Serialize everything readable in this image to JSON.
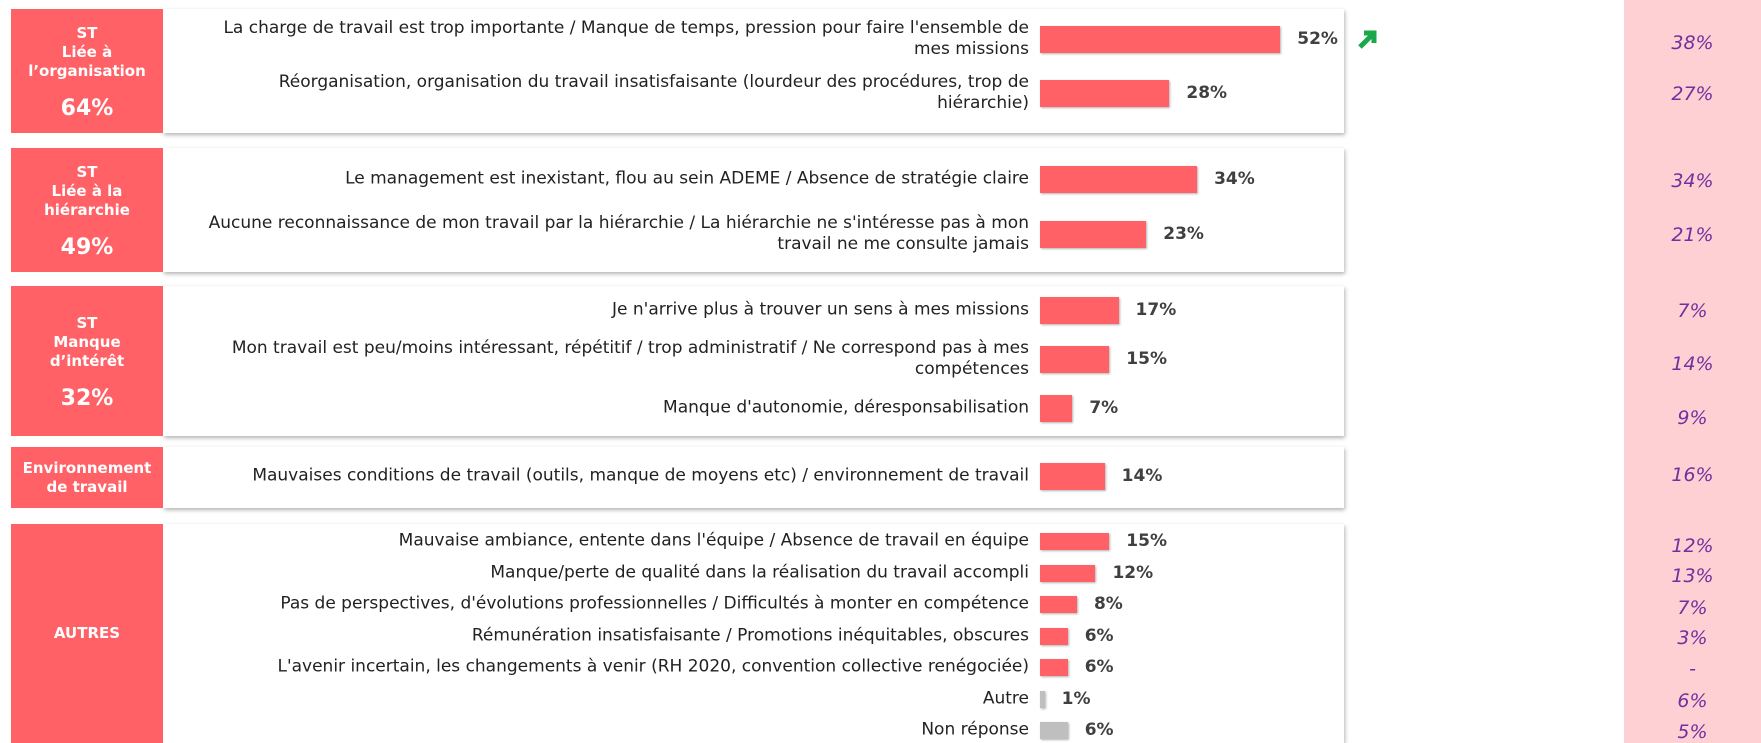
{
  "chart_data": {
    "type": "bar",
    "orientation": "horizontal",
    "groups": [
      {
        "title_lines": [
          "ST",
          "Liée à",
          "l’organisation"
        ],
        "total": 64,
        "total_label": "64%",
        "categories": [
          "La charge de travail est trop importante / Manque de temps, pression pour faire l'ensemble de mes missions",
          "Réorganisation, organisation du travail insatisfaisante (lourdeur des procédures, trop de hiérarchie)"
        ],
        "values": [
          52,
          28
        ],
        "value_labels": [
          "52%",
          "28%"
        ],
        "colors": [
          "#ff6166",
          "#ff6166"
        ],
        "previous": [
          38,
          27
        ],
        "previous_labels": [
          "38%",
          "27%"
        ]
      },
      {
        "title_lines": [
          "ST",
          "Liée à la",
          "hiérarchie"
        ],
        "total": 49,
        "total_label": "49%",
        "categories": [
          "Le management est inexistant, flou au sein ADEME / Absence de stratégie claire",
          "Aucune reconnaissance de mon travail par la hiérarchie / La hiérarchie ne s'intéresse pas à mon travail ne me consulte jamais"
        ],
        "values": [
          34,
          23
        ],
        "value_labels": [
          "34%",
          "23%"
        ],
        "colors": [
          "#ff6166",
          "#ff6166"
        ],
        "previous": [
          34,
          21
        ],
        "previous_labels": [
          "34%",
          "21%"
        ]
      },
      {
        "title_lines": [
          "ST",
          "Manque",
          "d’intérêt"
        ],
        "total": 32,
        "total_label": "32%",
        "categories": [
          "Je n'arrive plus à trouver un sens à mes missions",
          "Mon travail est peu/moins intéressant, répétitif / trop administratif / Ne correspond pas à mes compétences",
          "Manque d'autonomie, déresponsabilisation"
        ],
        "values": [
          17,
          15,
          7
        ],
        "value_labels": [
          "17%",
          "15%",
          "7%"
        ],
        "colors": [
          "#ff6166",
          "#ff6166",
          "#ff6166"
        ],
        "previous": [
          7,
          14,
          9
        ],
        "previous_labels": [
          "7%",
          "14%",
          "9%"
        ]
      },
      {
        "title_lines": [
          "Environnement",
          "de travail"
        ],
        "categories": [
          "Mauvaises conditions de travail (outils, manque de moyens etc) / environnement de travail"
        ],
        "values": [
          14
        ],
        "value_labels": [
          "14%"
        ],
        "colors": [
          "#ff6166"
        ],
        "previous": [
          16
        ],
        "previous_labels": [
          "16%"
        ]
      },
      {
        "title_lines": [
          "AUTRES"
        ],
        "categories": [
          "Mauvaise ambiance, entente dans l'équipe / Absence de travail en équipe",
          "Manque/perte de qualité dans la réalisation du travail accompli",
          "Pas de perspectives, d'évolutions professionnelles / Difficultés à monter en compétence",
          "Rémunération insatisfaisante / Promotions inéquitables, obscures",
          "L'avenir incertain, les changements à venir (RH 2020, convention collective renégociée)",
          "Autre",
          "Non réponse"
        ],
        "values": [
          15,
          12,
          8,
          6,
          6,
          1,
          6
        ],
        "value_labels": [
          "15%",
          "12%",
          "8%",
          "6%",
          "6%",
          "1%",
          "6%"
        ],
        "colors": [
          "#ff6166",
          "#ff6166",
          "#ff6166",
          "#ff6166",
          "#ff6166",
          "#bfbfbf",
          "#bfbfbf"
        ],
        "previous": [
          12,
          13,
          7,
          3,
          null,
          6,
          5
        ],
        "previous_labels": [
          "12%",
          "13%",
          "7%",
          "3%",
          "-",
          "6%",
          "5%"
        ]
      }
    ]
  }
}
